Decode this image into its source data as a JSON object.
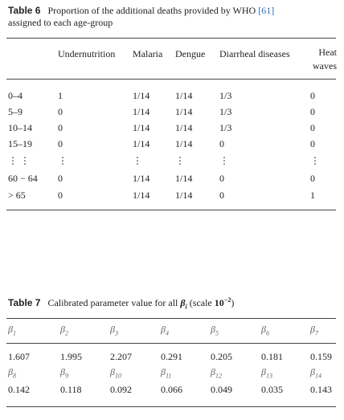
{
  "table6": {
    "label": "Table 6",
    "caption": [
      "Proportion of the additional deaths provided by WHO",
      "[61]",
      "assigned to each age-group"
    ],
    "columns": [
      "Undernutrition",
      "Malaria",
      "Dengue",
      "Diarrheal diseases",
      "Heat waves"
    ],
    "rows": [
      {
        "label": "0–4",
        "values": [
          "1",
          "1/14",
          "1/14",
          "1/3",
          "0"
        ]
      },
      {
        "label": "5–9",
        "values": [
          "0",
          "1/14",
          "1/14",
          "1/3",
          "0"
        ]
      },
      {
        "label": "10–14",
        "values": [
          "0",
          "1/14",
          "1/14",
          "1/3",
          "0"
        ]
      },
      {
        "label": "15–19",
        "values": [
          "0",
          "1/14",
          "1/14",
          "0",
          "0"
        ]
      },
      {
        "label": "⋮ ⋮",
        "values": [
          "⋮",
          "⋮",
          "⋮",
          "⋮",
          "⋮"
        ]
      },
      {
        "label": "60 − 64",
        "values": [
          "0",
          "1/14",
          "1/14",
          "0",
          "0"
        ]
      },
      {
        "label": "> 65",
        "values": [
          "0",
          "1/14",
          "1/14",
          "0",
          "1"
        ]
      }
    ]
  },
  "table7": {
    "label": "Table 7",
    "caption": {
      "text": "Calibrated parameter value for all",
      "symbol": "β",
      "sub": "i",
      "scale": "(scale",
      "base": "10",
      "exp": "−2",
      "close": ")"
    },
    "rows": [
      {
        "params": [
          {
            "symbol": "β",
            "sub": "1"
          },
          {
            "symbol": "β",
            "sub": "2"
          },
          {
            "symbol": "β",
            "sub": "3"
          },
          {
            "symbol": "β",
            "sub": "4"
          },
          {
            "symbol": "β",
            "sub": "5"
          },
          {
            "symbol": "β",
            "sub": "6"
          },
          {
            "symbol": "β",
            "sub": "7"
          }
        ],
        "values": [
          1.607,
          1.995,
          2.207,
          0.291,
          0.205,
          0.181,
          0.159
        ]
      },
      {
        "params": [
          {
            "symbol": "β",
            "sub": "8"
          },
          {
            "symbol": "β",
            "sub": "9"
          },
          {
            "symbol": "β",
            "sub": "10"
          },
          {
            "symbol": "β",
            "sub": "11"
          },
          {
            "symbol": "β",
            "sub": "12"
          },
          {
            "symbol": "β",
            "sub": "13"
          },
          {
            "symbol": "β",
            "sub": "14"
          }
        ],
        "values": [
          0.142,
          0.118,
          0.092,
          0.066,
          0.049,
          0.035,
          0.143
        ]
      }
    ]
  }
}
